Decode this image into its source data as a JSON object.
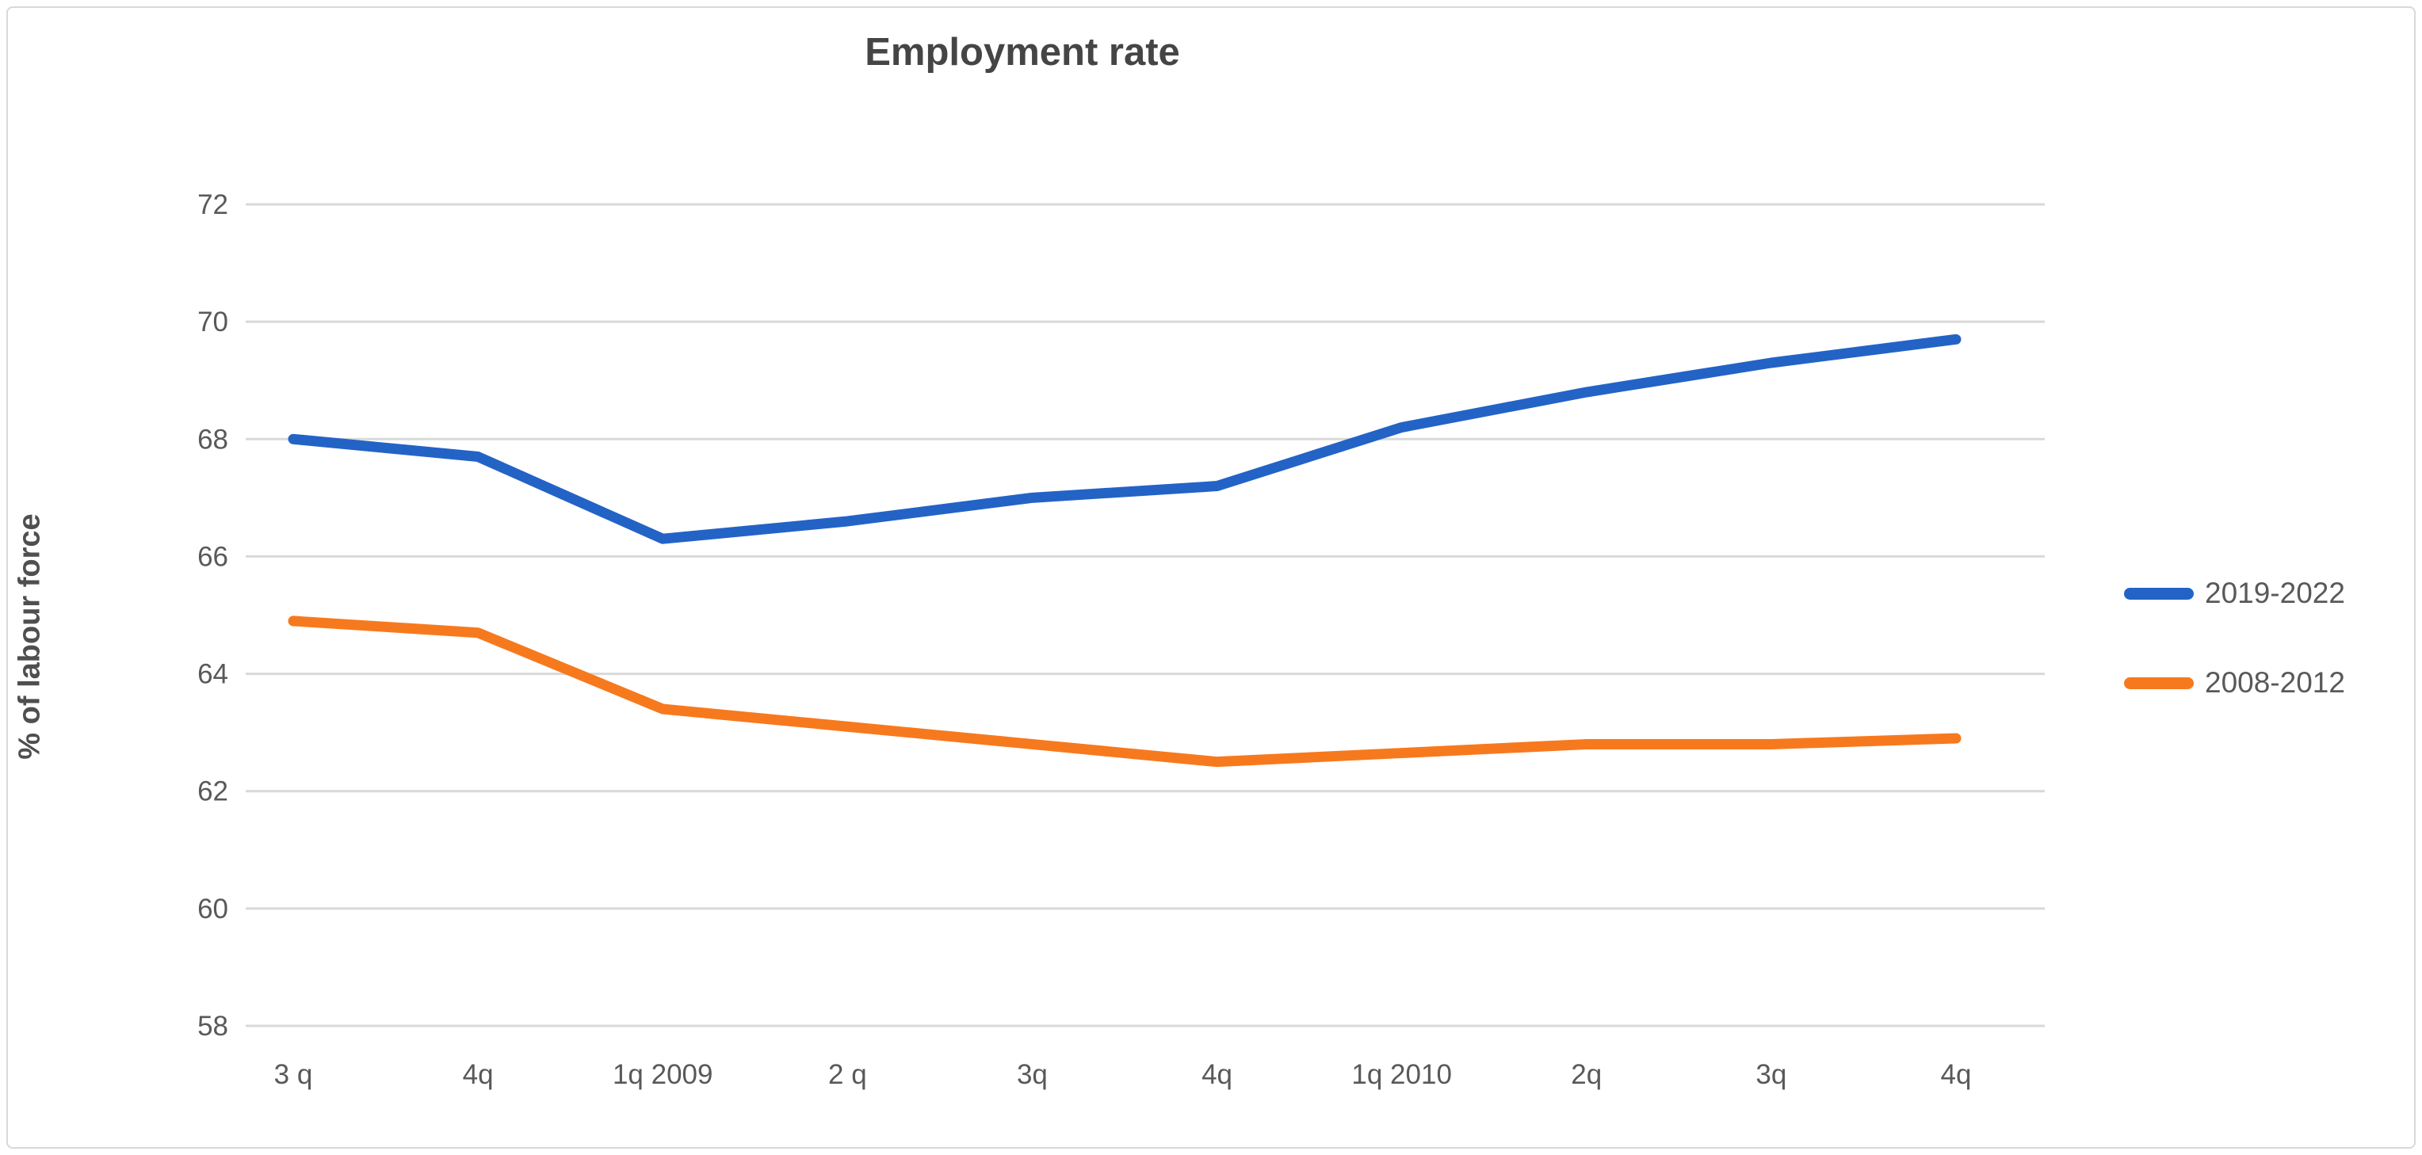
{
  "chart_data": {
    "type": "line",
    "title": "Employment rate",
    "ylabel": "% of labour force",
    "xlabel": "",
    "categories": [
      "3 q",
      "4q",
      "1q 2009",
      "2 q",
      "3q",
      "4q",
      "1q 2010",
      "2q",
      "3q",
      "4q"
    ],
    "series": [
      {
        "name": "2019-2022",
        "color": "#2363c6",
        "values": [
          68.0,
          67.7,
          66.3,
          66.6,
          67.0,
          67.2,
          68.2,
          68.8,
          69.3,
          69.7
        ]
      },
      {
        "name": "2008-2012",
        "color": "#f7791e",
        "values": [
          64.9,
          64.7,
          63.4,
          63.1,
          62.8,
          62.5,
          62.65,
          62.8,
          62.8,
          62.9
        ]
      }
    ],
    "y_ticks": [
      72,
      70,
      68,
      66,
      64,
      62,
      60,
      58
    ],
    "ylim": [
      58,
      72
    ],
    "grid": "horizontal",
    "legend_position": "right"
  },
  "colors": {
    "grid_line": "#d9d9d9",
    "tick_text": "#595959",
    "title_text": "#454545",
    "frame_border": "#d9d9d9",
    "background": "#ffffff"
  }
}
